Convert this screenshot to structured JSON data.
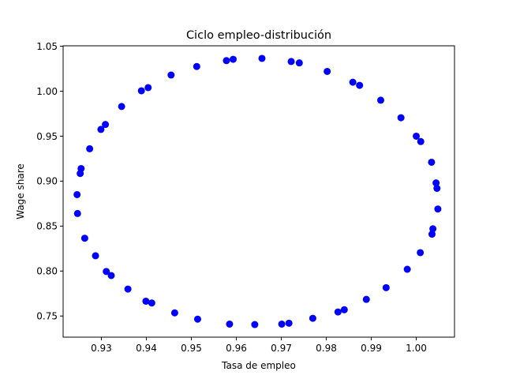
{
  "chart_data": {
    "type": "scatter",
    "title": "Ciclo empleo-distribución",
    "xlabel": "Tasa de empleo",
    "ylabel": "Wage share",
    "xlim": [
      0.9215,
      1.0085
    ],
    "ylim": [
      0.7265,
      1.0505
    ],
    "xticks": [
      0.93,
      0.94,
      0.95,
      0.96,
      0.97,
      0.98,
      0.99,
      1.0
    ],
    "xtick_labels": [
      "0.93",
      "0.94",
      "0.95",
      "0.96",
      "0.97",
      "0.98",
      "0.99",
      "1.00"
    ],
    "yticks": [
      0.75,
      0.8,
      0.85,
      0.9,
      0.95,
      1.0,
      1.05
    ],
    "ytick_labels": [
      "0.75",
      "0.80",
      "0.85",
      "0.90",
      "0.95",
      "1.00",
      "1.05"
    ],
    "grid": false,
    "legend": "none",
    "marker_color": "#0000ff",
    "series": [
      {
        "x": [
          0.9657,
          0.9722,
          0.974,
          0.9802,
          0.9859,
          0.9874,
          0.9921,
          0.9966,
          1.0,
          1.001,
          1.0034,
          1.0044,
          1.0046,
          1.0048,
          1.0037,
          1.0035,
          1.0009,
          0.998,
          0.9933,
          0.9889,
          0.984,
          0.9826,
          0.977,
          0.9717,
          0.9701,
          0.9641,
          0.9585,
          0.9514,
          0.9463,
          0.9412,
          0.9399,
          0.9359,
          0.9322,
          0.9311,
          0.9287,
          0.9263,
          0.9247,
          0.9246,
          0.9253,
          0.9255,
          0.9274,
          0.9299,
          0.9309,
          0.9345,
          0.9389,
          0.9404,
          0.9455,
          0.9512,
          0.9578,
          0.9593
        ],
        "y": [
          1.0365,
          1.033,
          1.0315,
          1.022,
          1.01,
          1.0065,
          0.99,
          0.9705,
          0.95,
          0.944,
          0.921,
          0.898,
          0.892,
          0.869,
          0.847,
          0.841,
          0.8205,
          0.802,
          0.7815,
          0.7685,
          0.757,
          0.7545,
          0.7475,
          0.742,
          0.741,
          0.7405,
          0.741,
          0.7465,
          0.7535,
          0.7645,
          0.7665,
          0.78,
          0.795,
          0.7995,
          0.817,
          0.8365,
          0.864,
          0.885,
          0.9085,
          0.914,
          0.936,
          0.9575,
          0.963,
          0.983,
          1.0005,
          1.004,
          1.018,
          1.0275,
          1.034,
          1.0355
        ]
      }
    ]
  }
}
